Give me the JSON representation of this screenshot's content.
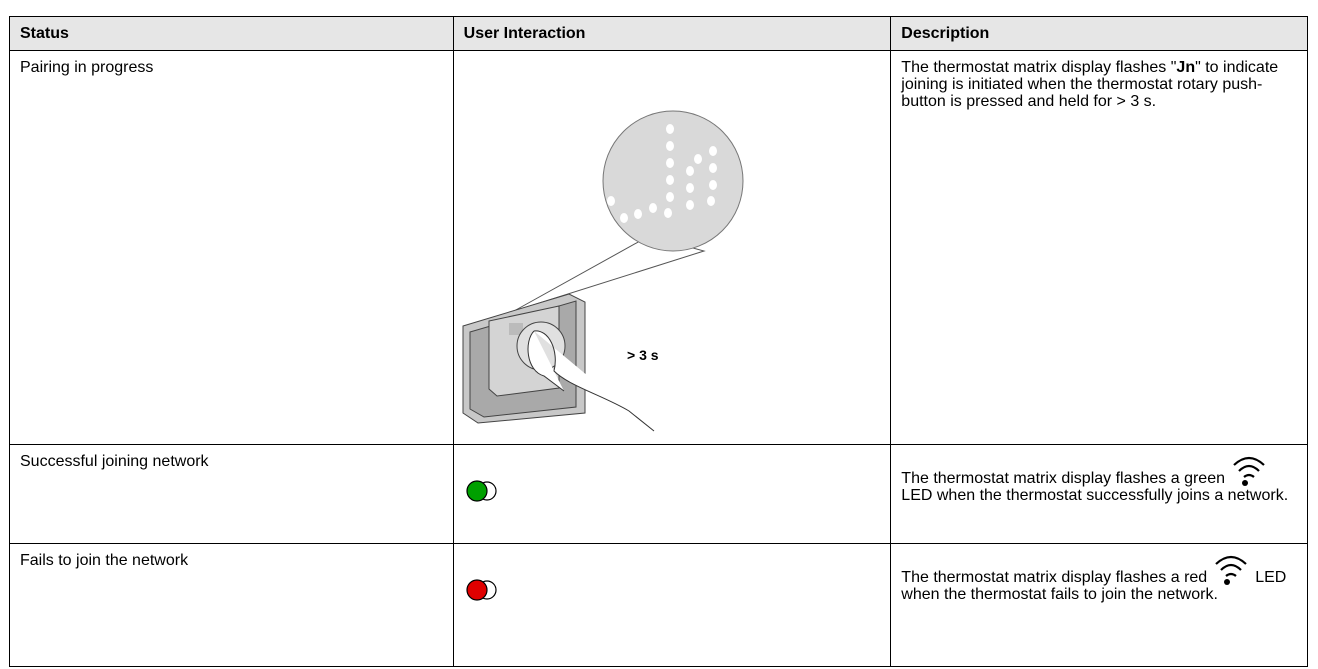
{
  "table": {
    "header": [
      "Status",
      "User Interaction",
      "Description"
    ],
    "rows": [
      {
        "status": "Pairing in progress",
        "interaction_label": "> 3 s",
        "description": [
          "The thermostat matrix display flashes \"",
          "Jn",
          "\" to indicate joining is initiated when the thermostat rotary push-button is pressed and held for > 3 s."
        ]
      },
      {
        "status": "Successful joining network",
        "description": [
          "The thermostat matrix display flashes a green",
          "LED when the thermostat successfully joins a network."
        ]
      },
      {
        "status": "Fails to join the network",
        "description": [
          "The thermostat matrix display flashes a red",
          "LED when the thermostat fails to join the network."
        ]
      }
    ]
  }
}
